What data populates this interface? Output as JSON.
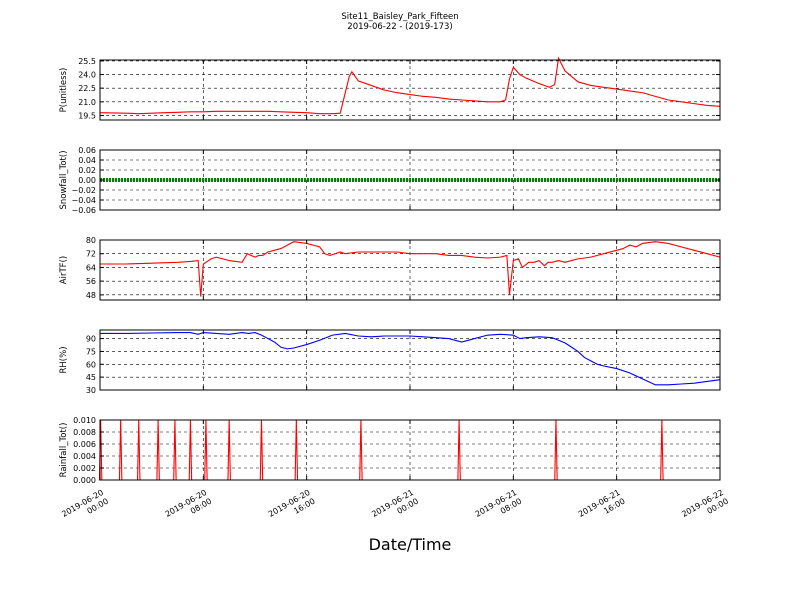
{
  "title": [
    "Site11_Baisley_Park_Fifteen",
    "2019-06-22 - (2019-173)"
  ],
  "xlabel": "Date/Time",
  "x_ticks": [
    [
      "2019-06-20",
      "00:00"
    ],
    [
      "2019-06-20",
      "08:00"
    ],
    [
      "2019-06-20",
      "16:00"
    ],
    [
      "2019-06-21",
      "00:00"
    ],
    [
      "2019-06-21",
      "08:00"
    ],
    [
      "2019-06-21",
      "16:00"
    ],
    [
      "2019-06-22",
      "00:00"
    ]
  ],
  "colors": {
    "p": "#ff0000",
    "snow": "#008000",
    "air": "#ff0000",
    "rh": "#0000ff",
    "rain": "#ff0000"
  },
  "chart_data": [
    {
      "type": "line",
      "ylabel": "P(unitless)",
      "xlim": [
        0,
        48
      ],
      "ylim": [
        19.0,
        25.6
      ],
      "yticks": [
        19.5,
        21.0,
        22.5,
        24.0,
        25.5
      ],
      "ytick_labels": [
        "19.5",
        "21.0",
        "22.5",
        "24.0",
        "25.5"
      ],
      "grid": true,
      "series": [
        {
          "color": "#ff0000",
          "x": [
            0,
            2,
            3,
            4,
            5,
            6,
            7,
            8,
            9,
            10,
            11,
            12,
            13,
            14,
            15,
            16,
            17,
            18,
            18.6,
            19.3,
            19.5,
            20,
            21,
            22,
            23,
            24,
            25,
            26,
            27,
            28,
            29,
            30,
            30.5,
            31,
            31.4,
            31.7,
            32,
            32.5,
            33,
            34,
            34.8,
            35.2,
            35.5,
            36,
            37,
            38,
            39,
            40,
            41,
            42,
            43,
            44,
            45,
            46,
            47,
            48
          ],
          "y": [
            19.8,
            19.75,
            19.7,
            19.75,
            19.8,
            19.85,
            19.9,
            19.9,
            19.95,
            19.95,
            19.95,
            19.95,
            19.95,
            19.9,
            19.85,
            19.8,
            19.7,
            19.7,
            19.75,
            23.8,
            24.3,
            23.3,
            22.8,
            22.3,
            22.0,
            21.8,
            21.6,
            21.5,
            21.3,
            21.2,
            21.1,
            21.0,
            21.0,
            21.0,
            21.2,
            23.5,
            24.8,
            24.0,
            23.6,
            23.0,
            22.6,
            22.9,
            25.8,
            24.4,
            23.2,
            22.8,
            22.6,
            22.4,
            22.2,
            22.0,
            21.6,
            21.2,
            21.0,
            20.8,
            20.6,
            20.5
          ]
        }
      ]
    },
    {
      "type": "line",
      "ylabel": "Snowfall_Tot()",
      "xlim": [
        0,
        48
      ],
      "ylim": [
        -0.06,
        0.06
      ],
      "yticks": [
        0.06,
        0.04,
        0.02,
        0.0,
        -0.02,
        -0.04,
        -0.06
      ],
      "ytick_labels": [
        "0.06",
        "0.04",
        "0.02",
        "0.00",
        "−0.02",
        "−0.04",
        "−0.06"
      ],
      "grid": true,
      "series": [
        {
          "color": "#008000",
          "x": [
            0,
            48
          ],
          "y": [
            0.0,
            0.0
          ]
        }
      ]
    },
    {
      "type": "line",
      "ylabel": "AirTF()",
      "xlim": [
        0,
        48
      ],
      "ylim": [
        45,
        80
      ],
      "yticks": [
        80,
        72,
        64,
        56,
        48
      ],
      "ytick_labels": [
        "80",
        "72",
        "64",
        "56",
        "48"
      ],
      "grid": true,
      "series": [
        {
          "color": "#ff0000",
          "x": [
            0,
            2,
            4,
            6,
            7,
            7.6,
            7.8,
            8.0,
            8.6,
            9,
            10,
            11,
            11.4,
            12,
            12.3,
            12.6,
            13,
            13.5,
            14,
            15,
            16,
            16.5,
            17,
            17.4,
            17.8,
            18.2,
            18.6,
            19,
            20,
            21,
            22,
            23,
            24,
            25,
            26,
            27,
            28,
            29,
            30,
            31,
            31.5,
            31.7,
            32,
            32.4,
            32.7,
            33.2,
            33.6,
            34,
            34.4,
            34.7,
            35,
            35.5,
            36,
            36.5,
            37,
            38,
            39,
            40,
            40.5,
            41,
            41.5,
            42,
            43,
            44,
            45,
            46,
            47,
            48
          ],
          "y": [
            66,
            66,
            66.5,
            67,
            67.5,
            68,
            47,
            66,
            69,
            70,
            68,
            67,
            72,
            70,
            71,
            71,
            73,
            74,
            75,
            79,
            78,
            77,
            76,
            72,
            71,
            72,
            73,
            72,
            73,
            73,
            73,
            73,
            72,
            72,
            72,
            71,
            71,
            70,
            69.5,
            70,
            71,
            48,
            68,
            69,
            64,
            67,
            67,
            68,
            65,
            67,
            67,
            68,
            67,
            68,
            69,
            70,
            72,
            74,
            75,
            77,
            76,
            78,
            79,
            78,
            76,
            74,
            72,
            70
          ]
        }
      ]
    },
    {
      "type": "line",
      "ylabel": "RH(%)",
      "xlim": [
        0,
        48
      ],
      "ylim": [
        30,
        100
      ],
      "yticks": [
        90,
        75,
        60,
        45,
        30
      ],
      "ytick_labels": [
        "90",
        "75",
        "60",
        "45",
        "30"
      ],
      "grid": true,
      "series": [
        {
          "color": "#0000ff",
          "x": [
            0,
            2,
            4,
            6,
            7,
            7.6,
            8,
            9,
            10,
            11,
            11.5,
            12,
            12.5,
            13,
            13.5,
            14,
            14.5,
            15,
            16,
            17,
            18,
            19,
            20,
            21,
            22,
            23,
            24,
            25,
            26,
            27,
            28,
            28.5,
            29,
            30,
            31,
            32,
            32.5,
            33,
            34,
            35,
            35.5,
            36,
            36.5,
            37,
            37.5,
            38,
            38.5,
            39,
            40,
            41,
            42,
            43,
            44,
            45,
            46,
            47,
            48
          ],
          "y": [
            96,
            96,
            96.5,
            97,
            97,
            95,
            97,
            96,
            95,
            97,
            96,
            97,
            94,
            90,
            86,
            80,
            78,
            79,
            83,
            88,
            94,
            96,
            93,
            92,
            93,
            93,
            93,
            92,
            91,
            90,
            86,
            88,
            90,
            94,
            95,
            94,
            90,
            91,
            92,
            91,
            88,
            85,
            80,
            75,
            68,
            64,
            60,
            58,
            55,
            50,
            43,
            36,
            36,
            37,
            38,
            40,
            42
          ]
        }
      ]
    },
    {
      "type": "line",
      "ylabel": "Rainfall_Tot()",
      "xlim": [
        0,
        48
      ],
      "ylim": [
        0,
        0.01
      ],
      "yticks": [
        0.01,
        0.008,
        0.006,
        0.004,
        0.002,
        0.0
      ],
      "ytick_labels": [
        "0.010",
        "0.008",
        "0.006",
        "0.004",
        "0.002",
        "0.000"
      ],
      "grid": true,
      "series": [
        {
          "color": "#ff0000",
          "spikes": [
            0.05,
            1.6,
            3.0,
            4.5,
            5.8,
            7.0,
            8.2,
            10.0,
            12.5,
            15.2,
            20.2,
            27.8,
            35.3,
            43.5
          ],
          "spike_value": 0.01
        }
      ]
    }
  ]
}
